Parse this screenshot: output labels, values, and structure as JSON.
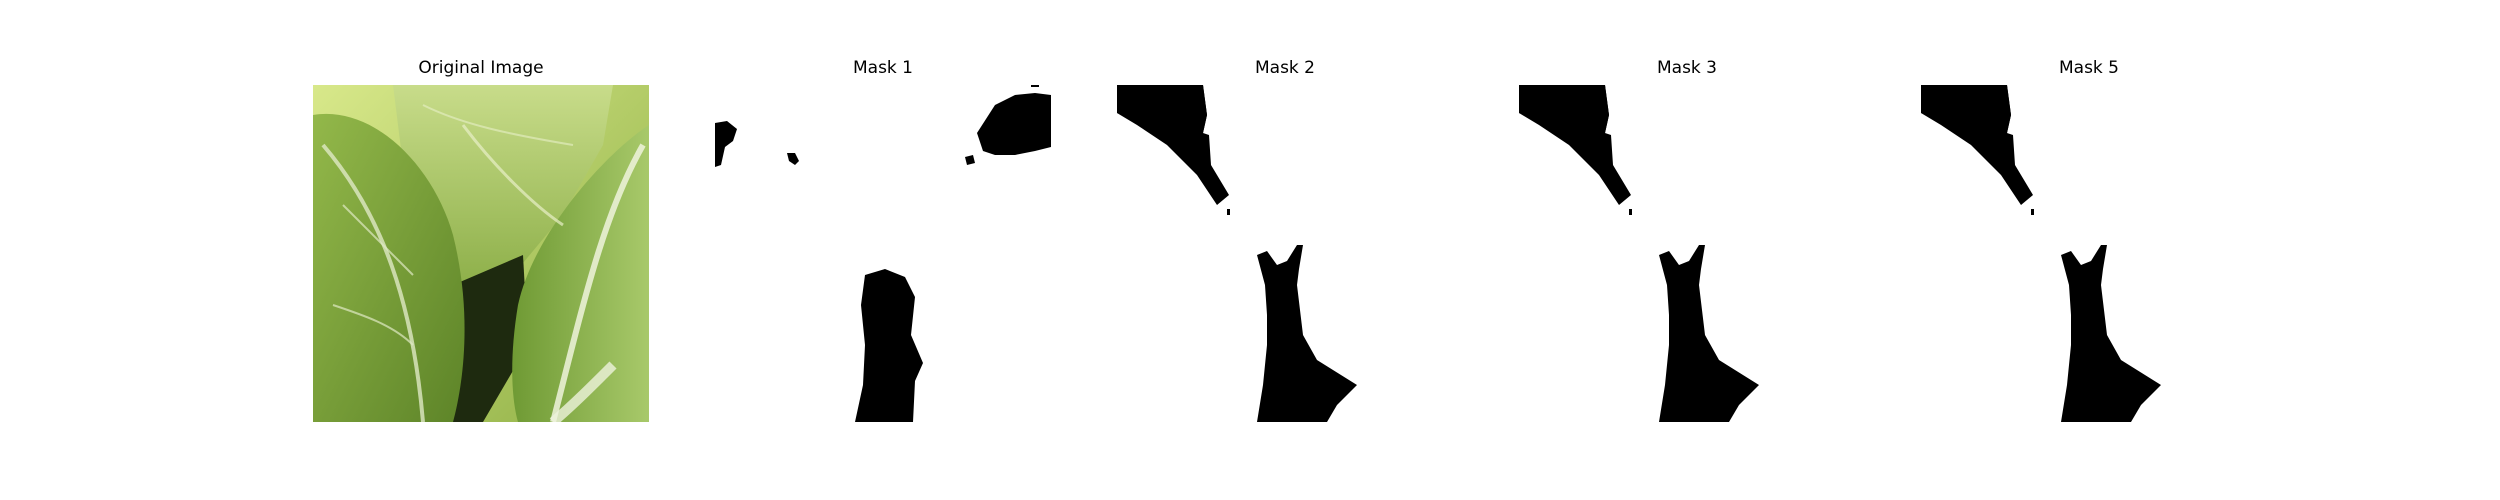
{
  "figure": {
    "panels": [
      {
        "title": "Original Image",
        "kind": "photo",
        "subject": "cabbage leaves"
      },
      {
        "title": "Mask 1",
        "kind": "mask"
      },
      {
        "title": "Mask 2",
        "kind": "mask"
      },
      {
        "title": "Mask 3",
        "kind": "mask"
      },
      {
        "title": "Mask 5",
        "kind": "mask"
      }
    ],
    "colors": {
      "background": "#ffffff",
      "mask_fg": "#000000",
      "leaf_light": "#b7d36a",
      "leaf_mid": "#7fa33a",
      "leaf_dark": "#4e7321",
      "leaf_vein": "#dfe9c4",
      "shadow": "#1e2a0f"
    }
  }
}
